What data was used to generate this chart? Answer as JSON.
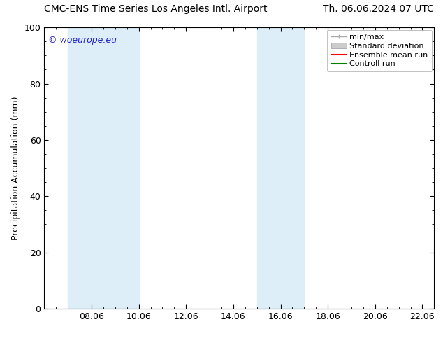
{
  "title_left": "CMC-ENS Time Series Los Angeles Intl. Airport",
  "title_right": "Th. 06.06.2024 07 UTC",
  "ylabel": "Precipitation Accumulation (mm)",
  "watermark": "© woeurope.eu",
  "xlim": [
    6.0,
    22.5
  ],
  "ylim": [
    0,
    100
  ],
  "yticks": [
    0,
    20,
    40,
    60,
    80,
    100
  ],
  "xticks": [
    8.0,
    10.0,
    12.0,
    14.0,
    16.0,
    18.0,
    20.0,
    22.0
  ],
  "xticklabels": [
    "08.06",
    "10.06",
    "12.06",
    "14.06",
    "16.06",
    "18.06",
    "20.06",
    "22.06"
  ],
  "shaded_bands": [
    {
      "x_start": 7.0,
      "x_end": 10.0
    },
    {
      "x_start": 15.0,
      "x_end": 17.0
    }
  ],
  "shade_color": "#ddeef9",
  "legend_entries": [
    {
      "label": "min/max",
      "color": "#aaaaaa",
      "style": "minmax"
    },
    {
      "label": "Standard deviation",
      "color": "#cccccc",
      "style": "stddev"
    },
    {
      "label": "Ensemble mean run",
      "color": "#ff0000",
      "style": "line"
    },
    {
      "label": "Controll run",
      "color": "#008000",
      "style": "line"
    }
  ],
  "background_color": "#ffffff",
  "title_fontsize": 10,
  "axis_fontsize": 9,
  "tick_fontsize": 9,
  "watermark_color": "#2222cc",
  "legend_fontsize": 8
}
